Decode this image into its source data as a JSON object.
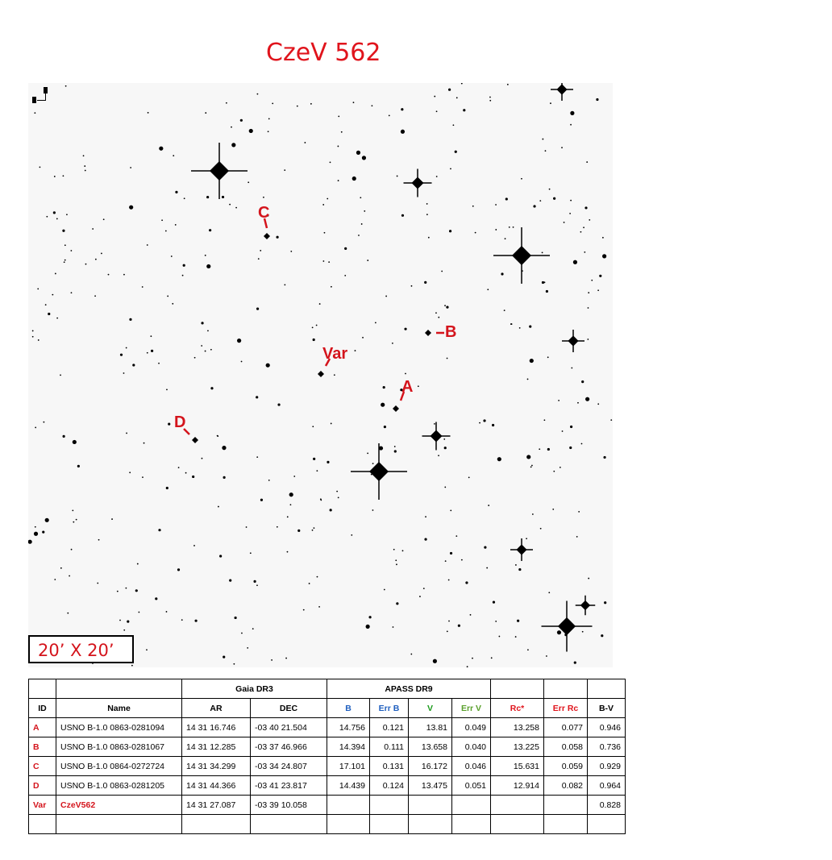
{
  "title": "CzeV 562",
  "field_size": "20’ X 20’",
  "labels": {
    "A": "A",
    "B": "B",
    "C": "C",
    "D": "D",
    "Var": "Var"
  },
  "table": {
    "group_headers": {
      "gaia": "Gaia DR3",
      "apass": "APASS DR9"
    },
    "headers": [
      "ID",
      "Name",
      "AR",
      "DEC",
      "B",
      "Err B",
      "V",
      "Err V",
      "Rc*",
      "Err Rc",
      "B-V"
    ],
    "rows": [
      [
        "A",
        "USNO B-1.0 0863-0281094",
        "14 31 16.746",
        "-03 40 21.504",
        "14.756",
        "0.121",
        "13.81",
        "0.049",
        "13.258",
        "0.077",
        "0.946"
      ],
      [
        "B",
        "USNO B-1.0 0863-0281067",
        "14 31 12.285",
        "-03 37 46.966",
        "14.394",
        "0.111",
        "13.658",
        "0.040",
        "13.225",
        "0.058",
        "0.736"
      ],
      [
        "C",
        "USNO B-1.0 0864-0272724",
        "14 31 34.299",
        "-03 34 24.807",
        "17.101",
        "0.131",
        "16.172",
        "0.046",
        "15.631",
        "0.059",
        "0.929"
      ],
      [
        "D",
        "USNO B-1.0 0863-0281205",
        "14 31 44.366",
        "-03 41 23.817",
        "14.439",
        "0.124",
        "13.475",
        "0.051",
        "12.914",
        "0.082",
        "0.964"
      ],
      [
        "Var",
        "CzeV562",
        "14 31 27.087",
        "-03 39 10.058",
        "",
        "",
        "",
        "",
        "",
        "",
        "0.828"
      ],
      [
        "",
        "",
        "",
        "",
        "",
        "",
        "",
        "",
        "",
        "",
        ""
      ]
    ]
  },
  "colors": {
    "label": "#d4141c",
    "B": "#1f5fbf",
    "V": "#1a9a1a",
    "ErrV": "#5aa02c",
    "Rc": "#e0141c"
  }
}
